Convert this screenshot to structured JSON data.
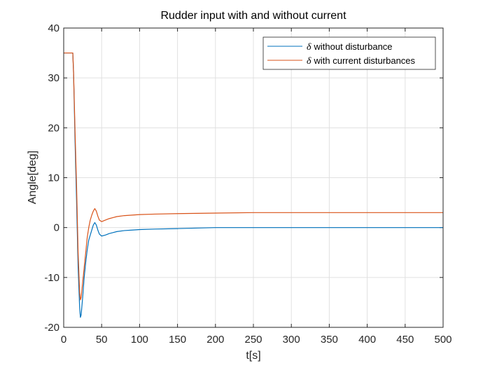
{
  "chart_data": {
    "type": "line",
    "title": "Rudder input with and without current",
    "xlabel": "t[s]",
    "ylabel": "Angle[deg]",
    "xlim": [
      0,
      500
    ],
    "ylim": [
      -20,
      40
    ],
    "xticks": [
      0,
      50,
      100,
      150,
      200,
      250,
      300,
      350,
      400,
      450,
      500
    ],
    "yticks": [
      -20,
      -10,
      0,
      10,
      20,
      30,
      40
    ],
    "grid": true,
    "legend_position": "top-right",
    "series": [
      {
        "name": "without disturbance",
        "symbol": "δ",
        "color": "#0072BD",
        "x": [
          0,
          12,
          13,
          15,
          17,
          19,
          21,
          22,
          23,
          25,
          27,
          29,
          31,
          33,
          35,
          37,
          39,
          41,
          43,
          45,
          47,
          50,
          55,
          60,
          65,
          70,
          80,
          90,
          100,
          120,
          150,
          200,
          250,
          300,
          350,
          400,
          450,
          500
        ],
        "y": [
          35,
          35,
          31,
          17,
          5,
          -8,
          -16,
          -18,
          -17.5,
          -14,
          -10,
          -7,
          -4.5,
          -2.5,
          -1.5,
          -0.5,
          0.5,
          1.0,
          0.5,
          -0.5,
          -1.3,
          -1.7,
          -1.5,
          -1.2,
          -1.0,
          -0.8,
          -0.6,
          -0.5,
          -0.4,
          -0.3,
          -0.2,
          0,
          0,
          0,
          0,
          0,
          0,
          0
        ]
      },
      {
        "name": "with current disturbances",
        "symbol": "δ",
        "color": "#D95319",
        "x": [
          0,
          12,
          13,
          15,
          17,
          19,
          21,
          22,
          23,
          25,
          27,
          29,
          31,
          33,
          35,
          37,
          39,
          41,
          43,
          45,
          47,
          50,
          55,
          60,
          65,
          70,
          80,
          90,
          100,
          120,
          150,
          200,
          250,
          300,
          350,
          400,
          450,
          500
        ],
        "y": [
          35,
          35,
          31,
          19,
          8,
          -5,
          -13,
          -14.5,
          -14,
          -11,
          -8,
          -5,
          -2,
          0,
          1.5,
          2.5,
          3.3,
          3.8,
          3.3,
          2.3,
          1.5,
          1.2,
          1.5,
          1.8,
          2.0,
          2.2,
          2.4,
          2.5,
          2.6,
          2.7,
          2.8,
          2.9,
          3.0,
          3.0,
          3.0,
          3.0,
          3.0,
          3.0
        ]
      }
    ]
  }
}
